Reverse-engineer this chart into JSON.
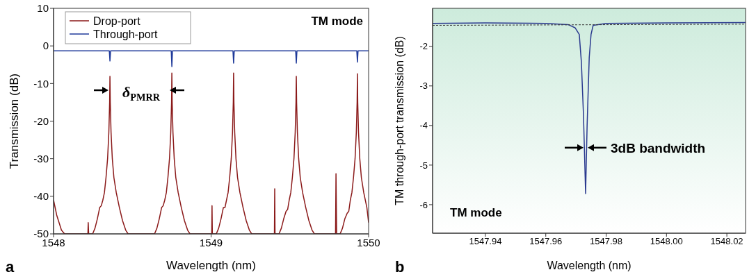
{
  "chart_data": [
    {
      "type": "line",
      "xlabel": "Wavelength (nm)",
      "ylabel": "Transmission (dB)",
      "xlim": [
        1548,
        1550
      ],
      "xticks": [
        1548,
        1549,
        1550
      ],
      "ylim": [
        -50,
        10
      ],
      "yticks": [
        -50,
        -40,
        -30,
        -20,
        -10,
        0,
        10
      ],
      "grid": false,
      "legend": "top left",
      "marker": "none",
      "line_style": "solid",
      "annotations": [
        "TM mode",
        "a",
        "δ$_{PMRR}$"
      ],
      "series": [
        {
          "name": "Drop-port",
          "color": "#8b1a1a",
          "x": [
            1548,
            1548.02,
            1548.05,
            1548.07,
            1548.218,
            1548.22,
            1548.223,
            1548.248,
            1548.263,
            1548.278,
            1548.293,
            1548.303,
            1548.313,
            1548.323,
            1548.333,
            1548.343,
            1548.351,
            1548.356,
            1548.358,
            1548.36,
            1548.365,
            1548.373,
            1548.383,
            1548.398,
            1548.418,
            1548.438,
            1548.458,
            1548.473,
            1548.641,
            1548.656,
            1548.671,
            1548.686,
            1548.696,
            1548.706,
            1548.716,
            1548.726,
            1548.736,
            1548.744,
            1548.749,
            1548.751,
            1548.753,
            1548.758,
            1548.766,
            1548.776,
            1548.791,
            1548.811,
            1548.831,
            1548.851,
            1548.866,
            1549.004,
            1549.006,
            1549.008,
            1549.033,
            1549.048,
            1549.063,
            1549.078,
            1549.088,
            1549.098,
            1549.108,
            1549.118,
            1549.128,
            1549.136,
            1549.141,
            1549.143,
            1549.145,
            1549.15,
            1549.158,
            1549.168,
            1549.183,
            1549.203,
            1549.223,
            1549.243,
            1549.258,
            1549.402,
            1549.404,
            1549.406,
            1549.431,
            1549.446,
            1549.461,
            1549.476,
            1549.486,
            1549.496,
            1549.506,
            1549.516,
            1549.526,
            1549.534,
            1549.539,
            1549.541,
            1549.543,
            1549.548,
            1549.556,
            1549.566,
            1549.581,
            1549.601,
            1549.621,
            1549.641,
            1549.656,
            1549.79,
            1549.793,
            1549.797,
            1549.819,
            1549.834,
            1549.849,
            1549.864,
            1549.874,
            1549.884,
            1549.894,
            1549.904,
            1549.914,
            1549.922,
            1549.927,
            1549.929,
            1549.931,
            1549.936,
            1549.944,
            1549.954,
            1549.969,
            1549.989,
            1550
          ],
          "values": [
            -41,
            -45,
            -49,
            -50,
            -50,
            -47,
            -50,
            -50,
            -48.5,
            -46,
            -43,
            -42.5,
            -41,
            -39,
            -35,
            -30,
            -23,
            -15,
            -8.1,
            -15,
            -23,
            -30,
            -35,
            -39,
            -43,
            -46.5,
            -49,
            -50,
            -50,
            -48.5,
            -46,
            -43,
            -42.5,
            -41,
            -39,
            -35,
            -30,
            -23,
            -15,
            -7.2,
            -15,
            -23,
            -30,
            -35,
            -39,
            -43,
            -46.5,
            -49,
            -50,
            -50,
            -42.5,
            -50,
            -50,
            -48.5,
            -46,
            -43,
            -43,
            -41,
            -39,
            -35,
            -30,
            -23,
            -15,
            -7.2,
            -15,
            -23,
            -30,
            -35,
            -39,
            -43,
            -46.5,
            -49,
            -50,
            -50,
            -38,
            -50,
            -50,
            -48.5,
            -46,
            -44,
            -43.5,
            -41,
            -39,
            -35,
            -30,
            -23,
            -15,
            -8.1,
            -15,
            -23,
            -30,
            -35,
            -39,
            -43,
            -46.5,
            -49,
            -50,
            -50,
            -34,
            -50,
            -50,
            -48.5,
            -46,
            -44.5,
            -44,
            -41,
            -39,
            -35,
            -30,
            -23,
            -15,
            -7.4,
            -15,
            -23,
            -30,
            -35,
            -39,
            -43,
            -47
          ]
        },
        {
          "name": "Through-port",
          "color": "#1f3a9a",
          "x": [
            1548,
            1548.354,
            1548.358,
            1548.362,
            1548.747,
            1548.751,
            1548.755,
            1549.139,
            1549.143,
            1549.147,
            1549.537,
            1549.541,
            1549.545,
            1549.925,
            1549.929,
            1549.933,
            1550
          ],
          "values": [
            -1.3,
            -1.3,
            -4,
            -1.3,
            -1.3,
            -5.5,
            -1.3,
            -1.3,
            -4.6,
            -1.3,
            -1.3,
            -4.6,
            -1.3,
            -1.3,
            -4.3,
            -1.3,
            -1.3
          ]
        }
      ]
    },
    {
      "type": "line",
      "xlabel": "Wavelength (nm)",
      "ylabel": "TM through-port transmission (dB)",
      "xlim": [
        1547.9225,
        1548.0262
      ],
      "xticks": [
        1547.94,
        1547.96,
        1547.98,
        {
          "value": 1548,
          "label": "1548.00"
        },
        1548.02
      ],
      "ylim": [
        -6.72,
        -1.04
      ],
      "yticks": [
        -6,
        -5,
        -4,
        -3,
        -2
      ],
      "grid": false,
      "legend": false,
      "marker": "none",
      "annotations": [
        "TM mode",
        "b",
        {
          "text": "3dB bandwidth",
          "x": 1547.9732,
          "y": -4.56
        }
      ],
      "series": [
        {
          "color": "#2b3a8f",
          "line_style": "solid",
          "x": [
            1547.9225,
            1547.94,
            1547.96,
            1547.9674,
            1547.9697,
            1547.9711,
            1547.9718,
            1547.9725,
            1547.9732,
            1547.9737,
            1547.9744,
            1547.975,
            1547.9757,
            1547.98,
            1548,
            1548.0262
          ],
          "values": [
            -1.42,
            -1.41,
            -1.42,
            -1.45,
            -1.53,
            -1.7,
            -2.4,
            -3.75,
            -5.72,
            -4,
            -2.28,
            -1.7,
            -1.47,
            -1.42,
            -1.41,
            -1.4
          ]
        },
        {
          "color": "#333333",
          "line_style": "dashed",
          "x": [
            1547.9225,
            1548.0262
          ],
          "values": [
            -1.47,
            -1.44
          ]
        }
      ]
    }
  ]
}
